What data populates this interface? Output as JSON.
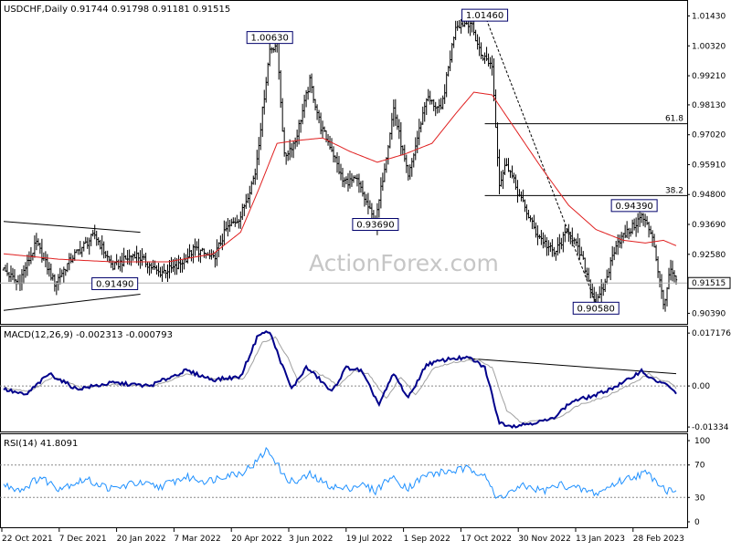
{
  "colors": {
    "bars": "#000000",
    "ma": "#e02020",
    "macd_line": "#00008b",
    "signal": "#a0a0a0",
    "ref_line": "#000000",
    "watermark": "#c6c6c6"
  },
  "watermark": "ActionForex.com",
  "chart_data": [
    {
      "type": "ohlc",
      "title": "USDCHF,Daily  0.91744 0.91798 0.91181 0.91515",
      "last_price_label": "0.91515",
      "last_price": 0.91515,
      "y_ticks": [
        "1.01430",
        "1.00320",
        "0.99210",
        "0.98130",
        "0.97020",
        "0.95910",
        "0.94800",
        "0.93690",
        "0.92580",
        "0.91515",
        "0.90390"
      ],
      "ylim": [
        0.901,
        1.0182
      ],
      "x_ticks": [
        "22 Oct 2021",
        "7 Dec 2021",
        "20 Jan 2022",
        "7 Mar 2022",
        "20 Apr 2022",
        "3 Jun 2022",
        "19 Jul 2022",
        "1 Sep 2022",
        "17 Oct 2022",
        "30 Nov 2022",
        "13 Jan 2023",
        "28 Feb 2023"
      ],
      "n_bars": 370,
      "series": [
        {
          "kind": "close_path",
          "points": [
            [
              0,
              0.92
            ],
            [
              8,
              0.915
            ],
            [
              18,
              0.93
            ],
            [
              28,
              0.915
            ],
            [
              38,
              0.925
            ],
            [
              50,
              0.933
            ],
            [
              60,
              0.921
            ],
            [
              72,
              0.926
            ],
            [
              85,
              0.919
            ],
            [
              95,
              0.921
            ],
            [
              105,
              0.928
            ],
            [
              115,
              0.924
            ],
            [
              122,
              0.935
            ],
            [
              130,
              0.94
            ],
            [
              138,
              0.956
            ],
            [
              146,
              1.002
            ],
            [
              150,
              1.004
            ],
            [
              154,
              0.962
            ],
            [
              160,
              0.968
            ],
            [
              168,
              0.99
            ],
            [
              174,
              0.973
            ],
            [
              180,
              0.965
            ],
            [
              186,
              0.953
            ],
            [
              194,
              0.953
            ],
            [
              204,
              0.9369
            ],
            [
              214,
              0.98
            ],
            [
              222,
              0.954
            ],
            [
              232,
              0.984
            ],
            [
              240,
              0.979
            ],
            [
              248,
              1.011
            ],
            [
              256,
              1.012
            ],
            [
              262,
              1.0
            ],
            [
              268,
              0.996
            ],
            [
              272,
              0.952
            ],
            [
              276,
              0.96
            ],
            [
              282,
              0.949
            ],
            [
              292,
              0.934
            ],
            [
              302,
              0.926
            ],
            [
              310,
              0.935
            ],
            [
              318,
              0.923
            ],
            [
              325,
              0.907
            ],
            [
              330,
              0.915
            ],
            [
              336,
              0.93
            ],
            [
              344,
              0.935
            ],
            [
              350,
              0.94
            ],
            [
              356,
              0.933
            ],
            [
              362,
              0.907
            ],
            [
              366,
              0.92
            ],
            [
              369,
              0.91515
            ]
          ]
        },
        {
          "name": "",
          "kind": "moving_average",
          "points": [
            [
              0,
              0.926
            ],
            [
              30,
              0.924
            ],
            [
              60,
              0.923
            ],
            [
              90,
              0.923
            ],
            [
              115,
              0.926
            ],
            [
              130,
              0.934
            ],
            [
              140,
              0.95
            ],
            [
              150,
              0.967
            ],
            [
              160,
              0.968
            ],
            [
              175,
              0.969
            ],
            [
              190,
              0.964
            ],
            [
              205,
              0.96
            ],
            [
              220,
              0.963
            ],
            [
              235,
              0.967
            ],
            [
              248,
              0.978
            ],
            [
              258,
              0.986
            ],
            [
              268,
              0.985
            ],
            [
              280,
              0.973
            ],
            [
              295,
              0.958
            ],
            [
              310,
              0.944
            ],
            [
              325,
              0.935
            ],
            [
              340,
              0.931
            ],
            [
              352,
              0.93
            ],
            [
              362,
              0.931
            ],
            [
              369,
              0.929
            ]
          ]
        }
      ],
      "callouts": [
        {
          "label": "1.00630",
          "x": 146,
          "y": 1.0063
        },
        {
          "label": "1.01460",
          "x": 264,
          "y": 1.0146
        },
        {
          "label": "0.93690",
          "x": 204,
          "y": 0.9369
        },
        {
          "label": "0.91490",
          "x": 61,
          "y": 0.9149
        },
        {
          "label": "0.94390",
          "x": 346,
          "y": 0.9439
        },
        {
          "label": "0.90580",
          "x": 325,
          "y": 0.9058
        }
      ],
      "fib_levels": [
        {
          "label": "61.8",
          "value": 0.9743
        },
        {
          "label": "38.2",
          "value": 0.9476
        }
      ],
      "fib_span": [
        264,
        369
      ],
      "trendlines": [
        {
          "style": "solid",
          "points": [
            [
              0,
              0.938
            ],
            [
              75,
              0.934
            ]
          ]
        },
        {
          "style": "solid",
          "points": [
            [
              0,
              0.905
            ],
            [
              75,
              0.911
            ]
          ]
        },
        {
          "style": "dashed",
          "points": [
            [
              264,
              1.0146
            ],
            [
              326,
              0.9058
            ]
          ]
        }
      ]
    },
    {
      "type": "line",
      "title": "MACD(12,26,9) -0.002313 -0.000793",
      "y_ticks": [
        "0.017176",
        "0.00",
        "-0.01334"
      ],
      "ylim": [
        -0.0145,
        0.0187
      ],
      "series": [
        {
          "name": "",
          "kind": "macd",
          "points": [
            [
              0,
              -0.001
            ],
            [
              12,
              -0.003
            ],
            [
              25,
              0.004
            ],
            [
              40,
              -0.001
            ],
            [
              60,
              0.001
            ],
            [
              80,
              0.0
            ],
            [
              100,
              0.005
            ],
            [
              115,
              0.002
            ],
            [
              130,
              0.003
            ],
            [
              140,
              0.017
            ],
            [
              146,
              0.0175
            ],
            [
              152,
              0.008
            ],
            [
              158,
              -0.001
            ],
            [
              166,
              0.006
            ],
            [
              172,
              0.003
            ],
            [
              180,
              -0.002
            ],
            [
              188,
              0.006
            ],
            [
              196,
              0.005
            ],
            [
              206,
              -0.006
            ],
            [
              214,
              0.004
            ],
            [
              222,
              -0.004
            ],
            [
              232,
              0.007
            ],
            [
              246,
              0.009
            ],
            [
              256,
              0.009
            ],
            [
              264,
              0.006
            ],
            [
              272,
              -0.012
            ],
            [
              280,
              -0.013
            ],
            [
              300,
              -0.011
            ],
            [
              312,
              -0.005
            ],
            [
              325,
              -0.003
            ],
            [
              340,
              0.001
            ],
            [
              350,
              0.005
            ],
            [
              356,
              0.002
            ],
            [
              362,
              0.001
            ],
            [
              369,
              -0.0023
            ]
          ]
        },
        {
          "name": "",
          "kind": "signal",
          "points": [
            [
              0,
              -0.0005
            ],
            [
              14,
              -0.002
            ],
            [
              27,
              0.003
            ],
            [
              42,
              -0.0005
            ],
            [
              62,
              0.0005
            ],
            [
              82,
              0.0
            ],
            [
              102,
              0.004
            ],
            [
              118,
              0.002
            ],
            [
              132,
              0.0025
            ],
            [
              142,
              0.014
            ],
            [
              149,
              0.016
            ],
            [
              156,
              0.009
            ],
            [
              162,
              0.001
            ],
            [
              170,
              0.005
            ],
            [
              176,
              0.003
            ],
            [
              184,
              0.0
            ],
            [
              192,
              0.005
            ],
            [
              200,
              0.004
            ],
            [
              210,
              -0.004
            ],
            [
              218,
              0.003
            ],
            [
              226,
              -0.003
            ],
            [
              236,
              0.006
            ],
            [
              250,
              0.008
            ],
            [
              260,
              0.0085
            ],
            [
              268,
              0.006
            ],
            [
              276,
              -0.008
            ],
            [
              284,
              -0.012
            ],
            [
              304,
              -0.0105
            ],
            [
              316,
              -0.006
            ],
            [
              330,
              -0.0035
            ],
            [
              344,
              0.0005
            ],
            [
              354,
              0.004
            ],
            [
              360,
              0.002
            ],
            [
              366,
              0.001
            ],
            [
              369,
              -0.0008
            ]
          ]
        }
      ],
      "trendlines": [
        {
          "style": "solid",
          "points": [
            [
              255,
              0.0089
            ],
            [
              369,
              0.004
            ]
          ]
        }
      ]
    },
    {
      "type": "line",
      "title": "RSI(14) 41.8091",
      "y_ticks": [
        "100",
        "70",
        "30",
        "0"
      ],
      "ylim": [
        0,
        100
      ],
      "ref_levels": [
        70,
        30
      ],
      "series": [
        {
          "name": "",
          "kind": "rsi",
          "points": [
            [
              0,
              45
            ],
            [
              10,
              40
            ],
            [
              20,
              55
            ],
            [
              30,
              42
            ],
            [
              45,
              52
            ],
            [
              60,
              40
            ],
            [
              72,
              48
            ],
            [
              85,
              43
            ],
            [
              100,
              55
            ],
            [
              112,
              50
            ],
            [
              122,
              58
            ],
            [
              130,
              60
            ],
            [
              138,
              72
            ],
            [
              144,
              88
            ],
            [
              148,
              80
            ],
            [
              154,
              55
            ],
            [
              160,
              48
            ],
            [
              168,
              58
            ],
            [
              176,
              47
            ],
            [
              186,
              40
            ],
            [
              196,
              46
            ],
            [
              204,
              38
            ],
            [
              212,
              55
            ],
            [
              222,
              42
            ],
            [
              232,
              58
            ],
            [
              244,
              62
            ],
            [
              254,
              65
            ],
            [
              264,
              60
            ],
            [
              270,
              28
            ],
            [
              276,
              35
            ],
            [
              286,
              44
            ],
            [
              296,
              38
            ],
            [
              306,
              46
            ],
            [
              316,
              40
            ],
            [
              326,
              35
            ],
            [
              336,
              48
            ],
            [
              344,
              55
            ],
            [
              352,
              60
            ],
            [
              358,
              52
            ],
            [
              364,
              38
            ],
            [
              369,
              41.8
            ]
          ]
        }
      ]
    }
  ]
}
